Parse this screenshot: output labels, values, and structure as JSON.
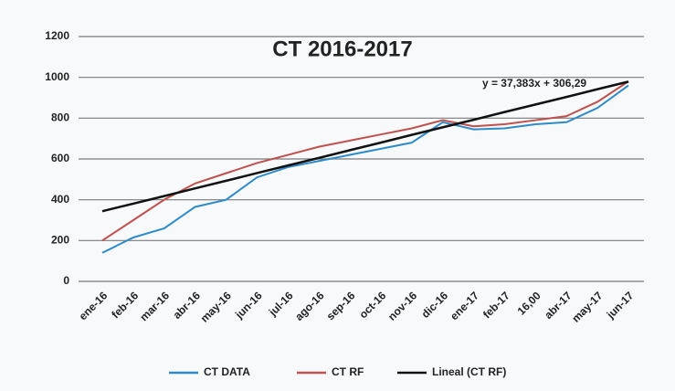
{
  "chart_data": {
    "type": "line",
    "title": "CT 2016-2017",
    "annotation": "y = 37,383x + 306,29",
    "categories": [
      "ene-16",
      "feb-16",
      "mar-16",
      "abr-16",
      "may-16",
      "jun-16",
      "jul-16",
      "ago-16",
      "sep-16",
      "oct-16",
      "nov-16",
      "dic-16",
      "ene-17",
      "feb-17",
      "16,00",
      "abr-17",
      "may-17",
      "jun-17"
    ],
    "series": [
      {
        "name": "CT DATA",
        "color": "#2e8bc9",
        "values": [
          140,
          215,
          260,
          365,
          400,
          510,
          560,
          590,
          620,
          650,
          680,
          780,
          745,
          750,
          770,
          780,
          850,
          960
        ]
      },
      {
        "name": "CT RF",
        "color": "#c0504d",
        "values": [
          200,
          300,
          400,
          480,
          530,
          580,
          620,
          660,
          690,
          720,
          750,
          790,
          760,
          770,
          790,
          810,
          880,
          980
        ]
      },
      {
        "name": "Lineal (CT RF)",
        "color": "#111111",
        "values": [
          344,
          381,
          418,
          456,
          493,
          531,
          568,
          605,
          643,
          680,
          718,
          755,
          792,
          830,
          867,
          904,
          942,
          979
        ]
      }
    ],
    "ylim": [
      0,
      1200
    ],
    "yticks": [
      0,
      200,
      400,
      600,
      800,
      1000,
      1200
    ],
    "grid": true,
    "legend": "bottom"
  }
}
